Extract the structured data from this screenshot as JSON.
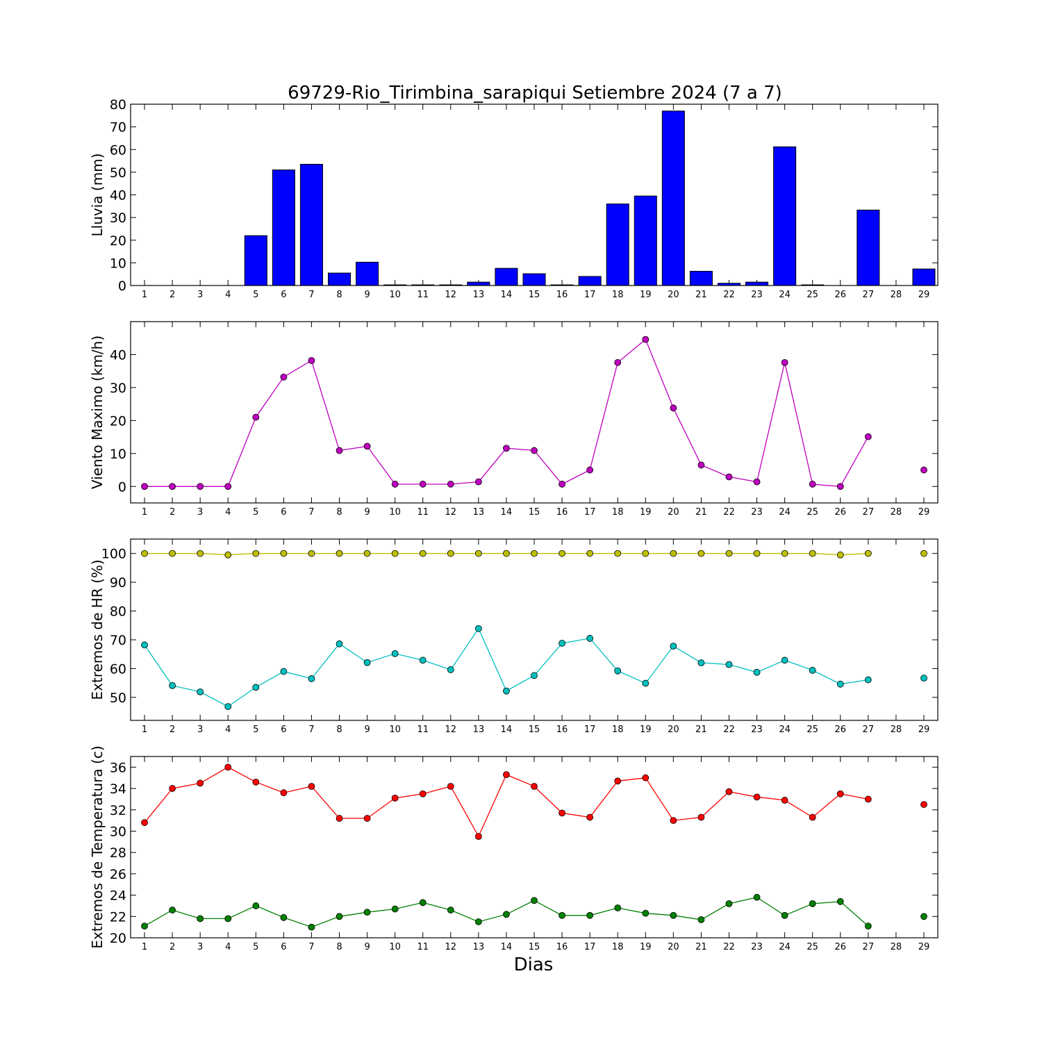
{
  "figure": {
    "title": "69729-Rio_Tirimbina_sarapiqui Setiembre 2024  (7 a 7)",
    "xlabel": "Dias"
  },
  "chart_data": [
    {
      "type": "bar",
      "ylabel": "Lluvia (mm)",
      "ylim": [
        0,
        80
      ],
      "yticks": [
        0,
        10,
        20,
        30,
        40,
        50,
        60,
        70,
        80
      ],
      "xlim": [
        0.5,
        29.5
      ],
      "x": [
        1,
        2,
        3,
        4,
        5,
        6,
        7,
        8,
        9,
        10,
        11,
        12,
        13,
        14,
        15,
        16,
        17,
        18,
        19,
        20,
        21,
        22,
        23,
        24,
        25,
        26,
        27,
        28,
        29
      ],
      "series": [
        {
          "color": "#0000ff",
          "values": [
            0,
            0,
            0,
            0,
            22,
            51,
            53.5,
            5.5,
            10.3,
            0.3,
            0.3,
            0.3,
            1.5,
            7.6,
            5.2,
            0.3,
            4,
            36,
            39.5,
            77,
            6.3,
            1,
            1.5,
            61.2,
            0.3,
            0,
            33.3,
            null,
            7.3
          ]
        }
      ]
    },
    {
      "type": "line",
      "ylabel": "Viento Maximo (km/h)",
      "ylim": [
        -5,
        50
      ],
      "yticks": [
        0,
        10,
        20,
        30,
        40
      ],
      "xlim": [
        0.5,
        29.5
      ],
      "x": [
        1,
        2,
        3,
        4,
        5,
        6,
        7,
        8,
        9,
        10,
        11,
        12,
        13,
        14,
        15,
        16,
        17,
        18,
        19,
        20,
        21,
        22,
        23,
        24,
        25,
        26,
        27,
        28,
        29
      ],
      "series": [
        {
          "color": "#bf00bf",
          "values": [
            0,
            0,
            0,
            0,
            21,
            33.2,
            38.2,
            10.9,
            12.2,
            0.7,
            0.7,
            0.7,
            1.4,
            11.6,
            10.9,
            0.7,
            5,
            37.6,
            44.6,
            23.8,
            6.5,
            2.9,
            1.4,
            37.6,
            0.7,
            0,
            15.1,
            null,
            5
          ]
        }
      ]
    },
    {
      "type": "line",
      "ylabel": "Extremos de HR (%)",
      "ylim": [
        42,
        105
      ],
      "yticks": [
        50,
        60,
        70,
        80,
        90,
        100
      ],
      "xlim": [
        0.5,
        29.5
      ],
      "x": [
        1,
        2,
        3,
        4,
        5,
        6,
        7,
        8,
        9,
        10,
        11,
        12,
        13,
        14,
        15,
        16,
        17,
        18,
        19,
        20,
        21,
        22,
        23,
        24,
        25,
        26,
        27,
        28,
        29
      ],
      "series": [
        {
          "color": "#bfbf00",
          "values": [
            100,
            100,
            100,
            99.5,
            100,
            100,
            100,
            100,
            100,
            100,
            100,
            100,
            100,
            100,
            100,
            100,
            100,
            100,
            100,
            100,
            100,
            100,
            100,
            100,
            100,
            99.5,
            100,
            null,
            100
          ]
        },
        {
          "color": "#00bfbf",
          "values": [
            68.2,
            54.1,
            51.9,
            46.8,
            53.5,
            59,
            56.5,
            68.6,
            62.1,
            65.2,
            62.9,
            59.6,
            73.9,
            52.2,
            57.6,
            68.8,
            70.5,
            59.2,
            54.9,
            67.8,
            62,
            61.4,
            58.7,
            62.9,
            59.4,
            54.6,
            56.1,
            null,
            56.7
          ]
        }
      ]
    },
    {
      "type": "line",
      "ylabel": "Extremos de Temperatura (c)",
      "ylim": [
        20,
        37
      ],
      "yticks": [
        20,
        22,
        24,
        26,
        28,
        30,
        32,
        34,
        36
      ],
      "xlim": [
        0.5,
        29.5
      ],
      "x": [
        1,
        2,
        3,
        4,
        5,
        6,
        7,
        8,
        9,
        10,
        11,
        12,
        13,
        14,
        15,
        16,
        17,
        18,
        19,
        20,
        21,
        22,
        23,
        24,
        25,
        26,
        27,
        28,
        29
      ],
      "series": [
        {
          "color": "#ff0000",
          "values": [
            30.8,
            34,
            34.5,
            36,
            34.6,
            33.6,
            34.2,
            31.2,
            31.2,
            33.1,
            33.5,
            34.2,
            29.5,
            35.3,
            34.2,
            31.7,
            31.3,
            34.7,
            35,
            31,
            31.3,
            33.7,
            33.2,
            32.9,
            31.3,
            33.5,
            33,
            null,
            32.5
          ]
        },
        {
          "color": "#008000",
          "values": [
            21.1,
            22.6,
            21.8,
            21.8,
            23,
            21.9,
            21,
            22,
            22.4,
            22.7,
            23.3,
            22.6,
            21.5,
            22.2,
            23.5,
            22.1,
            22.1,
            22.8,
            22.3,
            22.1,
            21.7,
            23.2,
            23.8,
            22.1,
            23.2,
            23.4,
            21.1,
            null,
            22
          ]
        }
      ]
    }
  ]
}
